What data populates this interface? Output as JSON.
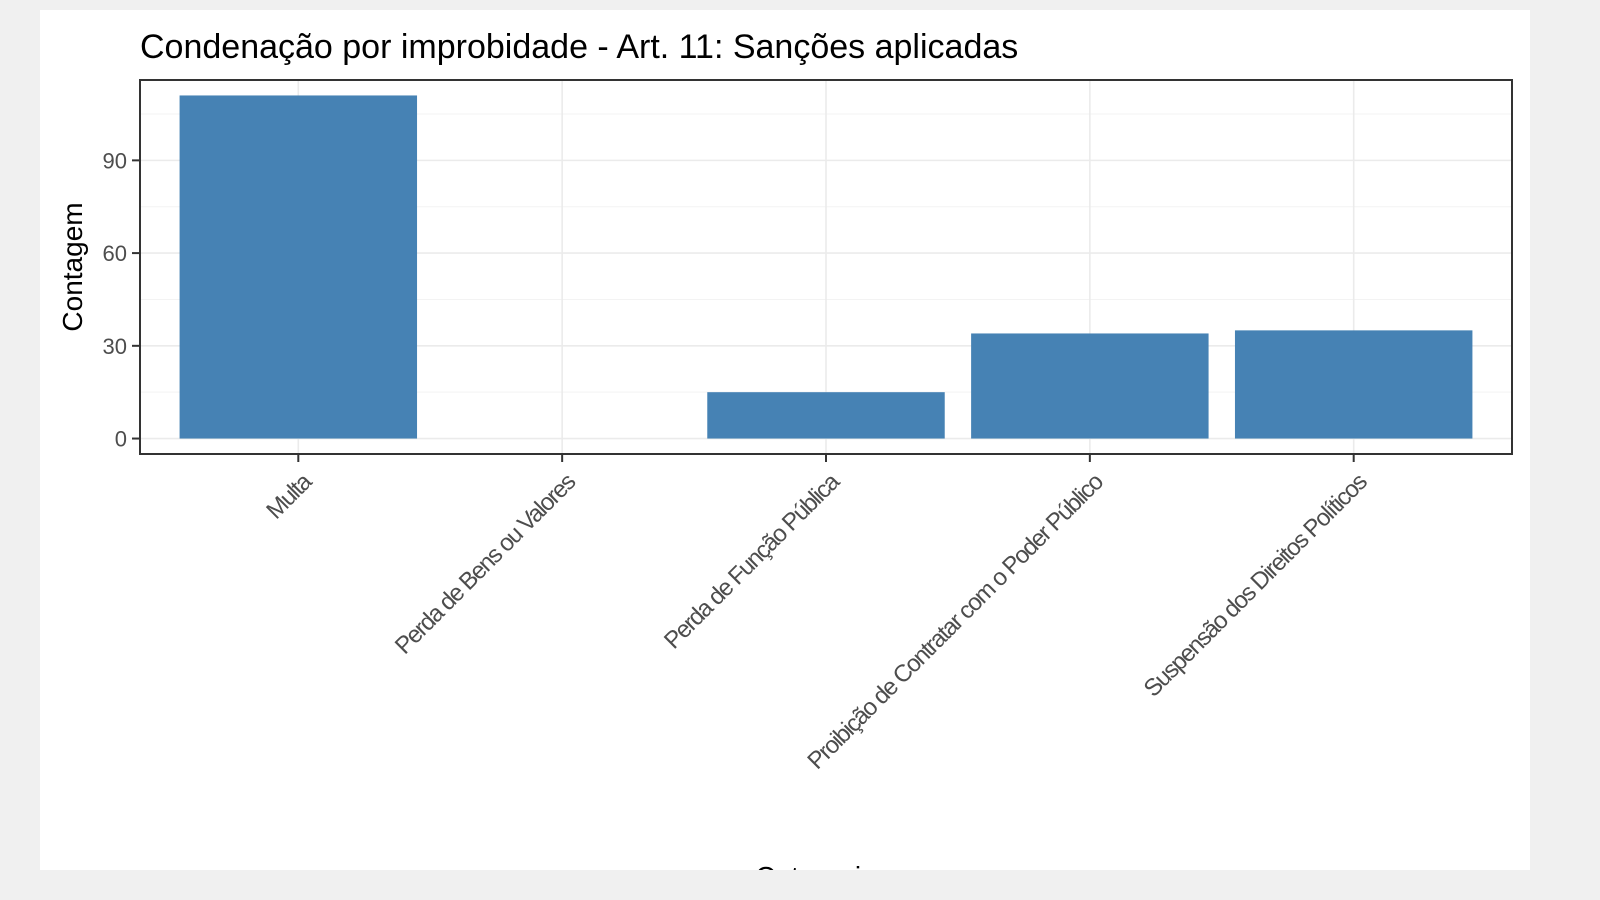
{
  "chart_data": {
    "type": "bar",
    "title": "Condenação por improbidade - Art. 11: Sanções aplicadas",
    "xlabel": "Categoria",
    "ylabel": "Contagem",
    "categories": [
      "Multa",
      "Perda de Bens ou Valores",
      "Perda de Função Pública",
      "Proibição de Contratar com o Poder Público",
      "Suspensão dos Direitos Políticos"
    ],
    "values": [
      111,
      0,
      15,
      34,
      35
    ],
    "ylim": [
      -5,
      116
    ],
    "yticks": [
      0,
      30,
      60,
      90
    ],
    "ytick_labels": [
      "0",
      "30",
      "60",
      "90"
    ],
    "grid": true,
    "bar_color": "#4682b4"
  }
}
